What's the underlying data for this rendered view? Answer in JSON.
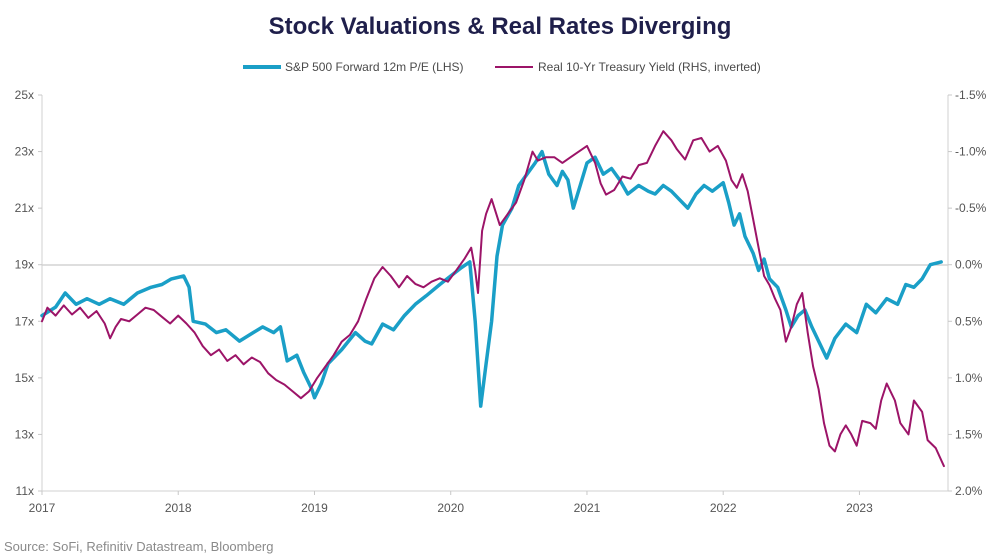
{
  "chart_data": {
    "type": "line",
    "title": "Stock Valuations & Real Rates Diverging",
    "source": "Source: SoFi, Refinitiv Datastream, Bloomberg",
    "x_range": [
      2017.0,
      2023.65
    ],
    "x_ticks": [
      "2017",
      "2018",
      "2019",
      "2020",
      "2021",
      "2022",
      "2023"
    ],
    "left_axis": {
      "range": [
        11,
        25
      ],
      "ticks": [
        {
          "value": 11,
          "label": "11x"
        },
        {
          "value": 13,
          "label": "13x"
        },
        {
          "value": 15,
          "label": "15x"
        },
        {
          "value": 17,
          "label": "17x"
        },
        {
          "value": 19,
          "label": "19x"
        },
        {
          "value": 21,
          "label": "21x"
        },
        {
          "value": 23,
          "label": "23x"
        },
        {
          "value": 25,
          "label": "25x"
        }
      ]
    },
    "right_axis": {
      "range": [
        -1.5,
        2.0
      ],
      "inverted": true,
      "ticks": [
        {
          "value": -1.5,
          "label": "-1.5%"
        },
        {
          "value": -1.0,
          "label": "-1.0%"
        },
        {
          "value": -0.5,
          "label": "-0.5%"
        },
        {
          "value": 0.0,
          "label": "0.0%"
        },
        {
          "value": 0.5,
          "label": "0.5%"
        },
        {
          "value": 1.0,
          "label": "1.0%"
        },
        {
          "value": 1.5,
          "label": "1.5%"
        },
        {
          "value": 2.0,
          "label": "2.0%"
        }
      ]
    },
    "series": [
      {
        "name": "S&P 500 Forward 12m P/E (LHS)",
        "axis": "left",
        "color": "#1a9fc7",
        "points": [
          [
            2017.0,
            17.2
          ],
          [
            2017.1,
            17.5
          ],
          [
            2017.17,
            18.0
          ],
          [
            2017.25,
            17.6
          ],
          [
            2017.33,
            17.8
          ],
          [
            2017.42,
            17.6
          ],
          [
            2017.5,
            17.8
          ],
          [
            2017.6,
            17.6
          ],
          [
            2017.7,
            18.0
          ],
          [
            2017.8,
            18.2
          ],
          [
            2017.88,
            18.3
          ],
          [
            2017.95,
            18.5
          ],
          [
            2018.04,
            18.6
          ],
          [
            2018.08,
            18.2
          ],
          [
            2018.11,
            17.0
          ],
          [
            2018.2,
            16.9
          ],
          [
            2018.28,
            16.6
          ],
          [
            2018.35,
            16.7
          ],
          [
            2018.45,
            16.3
          ],
          [
            2018.55,
            16.6
          ],
          [
            2018.62,
            16.8
          ],
          [
            2018.7,
            16.6
          ],
          [
            2018.75,
            16.8
          ],
          [
            2018.8,
            15.6
          ],
          [
            2018.87,
            15.8
          ],
          [
            2018.92,
            15.2
          ],
          [
            2018.98,
            14.6
          ],
          [
            2019.0,
            14.3
          ],
          [
            2019.05,
            14.8
          ],
          [
            2019.1,
            15.5
          ],
          [
            2019.2,
            16.0
          ],
          [
            2019.3,
            16.6
          ],
          [
            2019.37,
            16.3
          ],
          [
            2019.42,
            16.2
          ],
          [
            2019.5,
            16.9
          ],
          [
            2019.58,
            16.7
          ],
          [
            2019.66,
            17.2
          ],
          [
            2019.74,
            17.6
          ],
          [
            2019.82,
            17.9
          ],
          [
            2019.92,
            18.3
          ],
          [
            2020.0,
            18.6
          ],
          [
            2020.08,
            18.9
          ],
          [
            2020.14,
            19.1
          ],
          [
            2020.18,
            17.0
          ],
          [
            2020.22,
            14.0
          ],
          [
            2020.26,
            15.5
          ],
          [
            2020.3,
            17.0
          ],
          [
            2020.34,
            19.3
          ],
          [
            2020.38,
            20.4
          ],
          [
            2020.45,
            21.0
          ],
          [
            2020.5,
            21.8
          ],
          [
            2020.56,
            22.2
          ],
          [
            2020.62,
            22.6
          ],
          [
            2020.67,
            23.0
          ],
          [
            2020.72,
            22.2
          ],
          [
            2020.78,
            21.8
          ],
          [
            2020.82,
            22.3
          ],
          [
            2020.86,
            22.0
          ],
          [
            2020.9,
            21.0
          ],
          [
            2020.95,
            21.8
          ],
          [
            2021.0,
            22.6
          ],
          [
            2021.06,
            22.8
          ],
          [
            2021.12,
            22.2
          ],
          [
            2021.18,
            22.4
          ],
          [
            2021.24,
            22.0
          ],
          [
            2021.3,
            21.5
          ],
          [
            2021.38,
            21.8
          ],
          [
            2021.45,
            21.6
          ],
          [
            2021.5,
            21.5
          ],
          [
            2021.56,
            21.8
          ],
          [
            2021.62,
            21.6
          ],
          [
            2021.68,
            21.3
          ],
          [
            2021.74,
            21.0
          ],
          [
            2021.8,
            21.5
          ],
          [
            2021.86,
            21.8
          ],
          [
            2021.92,
            21.6
          ],
          [
            2022.0,
            21.9
          ],
          [
            2022.04,
            21.2
          ],
          [
            2022.08,
            20.4
          ],
          [
            2022.12,
            20.8
          ],
          [
            2022.16,
            20.0
          ],
          [
            2022.22,
            19.4
          ],
          [
            2022.26,
            18.8
          ],
          [
            2022.3,
            19.2
          ],
          [
            2022.34,
            18.5
          ],
          [
            2022.4,
            18.2
          ],
          [
            2022.46,
            17.4
          ],
          [
            2022.5,
            16.8
          ],
          [
            2022.55,
            17.2
          ],
          [
            2022.6,
            17.4
          ],
          [
            2022.65,
            16.8
          ],
          [
            2022.7,
            16.3
          ],
          [
            2022.76,
            15.7
          ],
          [
            2022.82,
            16.4
          ],
          [
            2022.9,
            16.9
          ],
          [
            2022.98,
            16.6
          ],
          [
            2023.05,
            17.6
          ],
          [
            2023.12,
            17.3
          ],
          [
            2023.2,
            17.8
          ],
          [
            2023.28,
            17.6
          ],
          [
            2023.34,
            18.3
          ],
          [
            2023.4,
            18.2
          ],
          [
            2023.46,
            18.5
          ],
          [
            2023.52,
            19.0
          ],
          [
            2023.6,
            19.1
          ]
        ]
      },
      {
        "name": "Real 10-Yr Treasury Yield (RHS, inverted)",
        "axis": "right",
        "color": "#9c1468",
        "points": [
          [
            2017.0,
            0.5
          ],
          [
            2017.04,
            0.38
          ],
          [
            2017.1,
            0.45
          ],
          [
            2017.16,
            0.36
          ],
          [
            2017.22,
            0.44
          ],
          [
            2017.28,
            0.38
          ],
          [
            2017.34,
            0.47
          ],
          [
            2017.4,
            0.41
          ],
          [
            2017.46,
            0.52
          ],
          [
            2017.5,
            0.65
          ],
          [
            2017.54,
            0.55
          ],
          [
            2017.58,
            0.48
          ],
          [
            2017.64,
            0.5
          ],
          [
            2017.7,
            0.44
          ],
          [
            2017.76,
            0.38
          ],
          [
            2017.82,
            0.4
          ],
          [
            2017.88,
            0.46
          ],
          [
            2017.94,
            0.52
          ],
          [
            2018.0,
            0.45
          ],
          [
            2018.06,
            0.52
          ],
          [
            2018.12,
            0.6
          ],
          [
            2018.18,
            0.72
          ],
          [
            2018.24,
            0.8
          ],
          [
            2018.3,
            0.75
          ],
          [
            2018.36,
            0.85
          ],
          [
            2018.42,
            0.8
          ],
          [
            2018.48,
            0.88
          ],
          [
            2018.54,
            0.82
          ],
          [
            2018.6,
            0.86
          ],
          [
            2018.66,
            0.96
          ],
          [
            2018.72,
            1.02
          ],
          [
            2018.78,
            1.06
          ],
          [
            2018.84,
            1.12
          ],
          [
            2018.9,
            1.18
          ],
          [
            2018.96,
            1.12
          ],
          [
            2019.02,
            1.0
          ],
          [
            2019.08,
            0.9
          ],
          [
            2019.14,
            0.8
          ],
          [
            2019.2,
            0.68
          ],
          [
            2019.26,
            0.62
          ],
          [
            2019.32,
            0.5
          ],
          [
            2019.38,
            0.3
          ],
          [
            2019.44,
            0.12
          ],
          [
            2019.5,
            0.02
          ],
          [
            2019.56,
            0.1
          ],
          [
            2019.62,
            0.2
          ],
          [
            2019.68,
            0.1
          ],
          [
            2019.74,
            0.17
          ],
          [
            2019.8,
            0.2
          ],
          [
            2019.86,
            0.15
          ],
          [
            2019.92,
            0.12
          ],
          [
            2019.98,
            0.15
          ],
          [
            2020.04,
            0.05
          ],
          [
            2020.1,
            -0.05
          ],
          [
            2020.15,
            -0.15
          ],
          [
            2020.18,
            0.05
          ],
          [
            2020.2,
            0.25
          ],
          [
            2020.23,
            -0.3
          ],
          [
            2020.26,
            -0.45
          ],
          [
            2020.3,
            -0.58
          ],
          [
            2020.36,
            -0.35
          ],
          [
            2020.42,
            -0.45
          ],
          [
            2020.48,
            -0.55
          ],
          [
            2020.54,
            -0.75
          ],
          [
            2020.6,
            -1.0
          ],
          [
            2020.64,
            -0.92
          ],
          [
            2020.7,
            -0.95
          ],
          [
            2020.76,
            -0.95
          ],
          [
            2020.82,
            -0.9
          ],
          [
            2020.88,
            -0.95
          ],
          [
            2020.94,
            -1.0
          ],
          [
            2021.0,
            -1.05
          ],
          [
            2021.06,
            -0.9
          ],
          [
            2021.1,
            -0.72
          ],
          [
            2021.14,
            -0.62
          ],
          [
            2021.2,
            -0.66
          ],
          [
            2021.26,
            -0.78
          ],
          [
            2021.32,
            -0.76
          ],
          [
            2021.38,
            -0.88
          ],
          [
            2021.44,
            -0.9
          ],
          [
            2021.5,
            -1.05
          ],
          [
            2021.56,
            -1.18
          ],
          [
            2021.62,
            -1.1
          ],
          [
            2021.66,
            -1.02
          ],
          [
            2021.72,
            -0.93
          ],
          [
            2021.78,
            -1.1
          ],
          [
            2021.84,
            -1.12
          ],
          [
            2021.9,
            -1.0
          ],
          [
            2021.96,
            -1.05
          ],
          [
            2022.02,
            -0.92
          ],
          [
            2022.06,
            -0.75
          ],
          [
            2022.1,
            -0.68
          ],
          [
            2022.14,
            -0.8
          ],
          [
            2022.18,
            -0.65
          ],
          [
            2022.22,
            -0.4
          ],
          [
            2022.26,
            -0.15
          ],
          [
            2022.3,
            0.1
          ],
          [
            2022.34,
            0.18
          ],
          [
            2022.38,
            0.3
          ],
          [
            2022.42,
            0.4
          ],
          [
            2022.46,
            0.68
          ],
          [
            2022.5,
            0.55
          ],
          [
            2022.54,
            0.35
          ],
          [
            2022.58,
            0.25
          ],
          [
            2022.62,
            0.6
          ],
          [
            2022.66,
            0.9
          ],
          [
            2022.7,
            1.1
          ],
          [
            2022.74,
            1.4
          ],
          [
            2022.78,
            1.6
          ],
          [
            2022.82,
            1.65
          ],
          [
            2022.86,
            1.5
          ],
          [
            2022.9,
            1.42
          ],
          [
            2022.94,
            1.5
          ],
          [
            2022.98,
            1.6
          ],
          [
            2023.02,
            1.38
          ],
          [
            2023.08,
            1.4
          ],
          [
            2023.12,
            1.45
          ],
          [
            2023.16,
            1.2
          ],
          [
            2023.2,
            1.05
          ],
          [
            2023.26,
            1.2
          ],
          [
            2023.3,
            1.4
          ],
          [
            2023.36,
            1.5
          ],
          [
            2023.4,
            1.2
          ],
          [
            2023.46,
            1.3
          ],
          [
            2023.5,
            1.55
          ],
          [
            2023.56,
            1.62
          ],
          [
            2023.62,
            1.78
          ]
        ]
      }
    ]
  }
}
